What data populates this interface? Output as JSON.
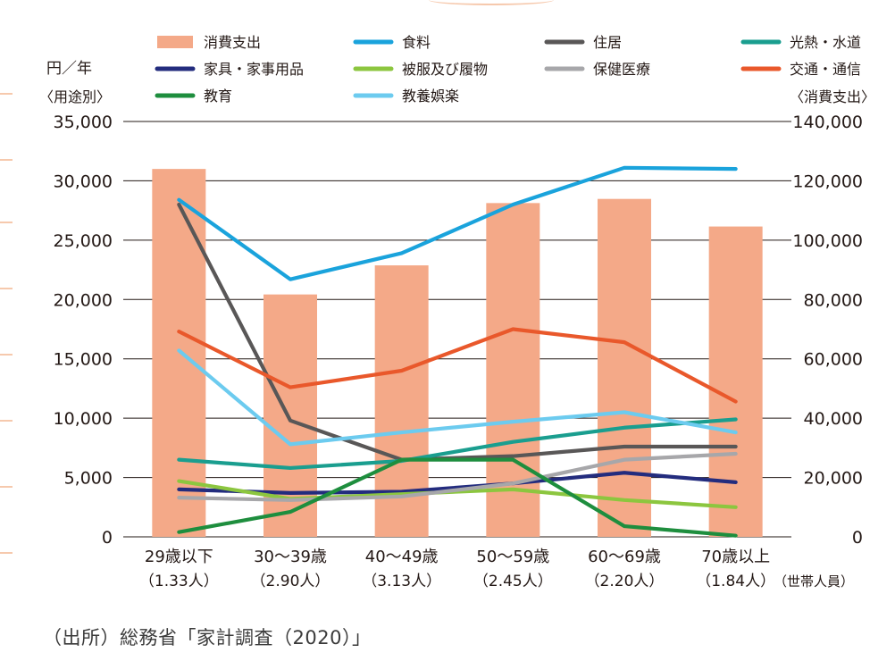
{
  "left_axis": {
    "unit": "円／年",
    "caption": "〈用途別〉"
  },
  "right_axis": {
    "caption": "〈消費支出〉"
  },
  "x_axis_caption": "（世帯人員）",
  "source": "（出所）総務省「家計調査（2020）」",
  "chart_data": {
    "type": "bar+line",
    "categories": [
      "29歳以下",
      "30～39歳",
      "40～49歳",
      "50～59歳",
      "60～69歳",
      "70歳以上"
    ],
    "category_sublabels": [
      "（1.33人）",
      "（2.90人）",
      "（3.13人）",
      "（2.45人）",
      "（2.20人）",
      "（1.84人）"
    ],
    "left_axis": {
      "ylim": [
        0,
        35000
      ],
      "ticks": [
        "0",
        "5,000",
        "10,000",
        "15,000",
        "20,000",
        "25,000",
        "30,000",
        "35,000"
      ]
    },
    "right_axis": {
      "ylim": [
        0,
        140000
      ],
      "ticks": [
        "0",
        "20,000",
        "40,000",
        "60,000",
        "80,000",
        "100,000",
        "120,000",
        "140,000"
      ]
    },
    "grid": true,
    "legend_position": "top",
    "bars": {
      "name": "消費支出",
      "axis": "right",
      "color": "#f4a988",
      "values": [
        124000,
        81700,
        91500,
        112500,
        113900,
        104600
      ]
    },
    "series": [
      {
        "name": "食料",
        "color": "#1aa3dc",
        "values": [
          28400,
          21700,
          23900,
          28000,
          31100,
          31000
        ]
      },
      {
        "name": "住居",
        "color": "#595757",
        "values": [
          28000,
          9800,
          6500,
          6800,
          7600,
          7600
        ]
      },
      {
        "name": "光熱・水道",
        "color": "#1a9e8f",
        "values": [
          6500,
          5800,
          6400,
          8000,
          9200,
          9900
        ]
      },
      {
        "name": "家具・家事用品",
        "color": "#232c7e",
        "values": [
          4000,
          3700,
          3800,
          4500,
          5400,
          4600
        ]
      },
      {
        "name": "被服及び履物",
        "color": "#8cc63f",
        "values": [
          4700,
          3200,
          3600,
          4000,
          3100,
          2500
        ]
      },
      {
        "name": "保健医療",
        "color": "#a7a7aa",
        "values": [
          3300,
          3100,
          3400,
          4500,
          6500,
          7000
        ]
      },
      {
        "name": "交通・通信",
        "color": "#e9582b",
        "values": [
          17300,
          12600,
          14000,
          17500,
          16400,
          11400
        ]
      },
      {
        "name": "教育",
        "color": "#1e8e3e",
        "values": [
          400,
          2100,
          6500,
          6500,
          900,
          100
        ]
      },
      {
        "name": "教養娯楽",
        "color": "#6ccbef",
        "values": [
          15700,
          7800,
          8800,
          9700,
          10500,
          8800
        ]
      }
    ]
  }
}
